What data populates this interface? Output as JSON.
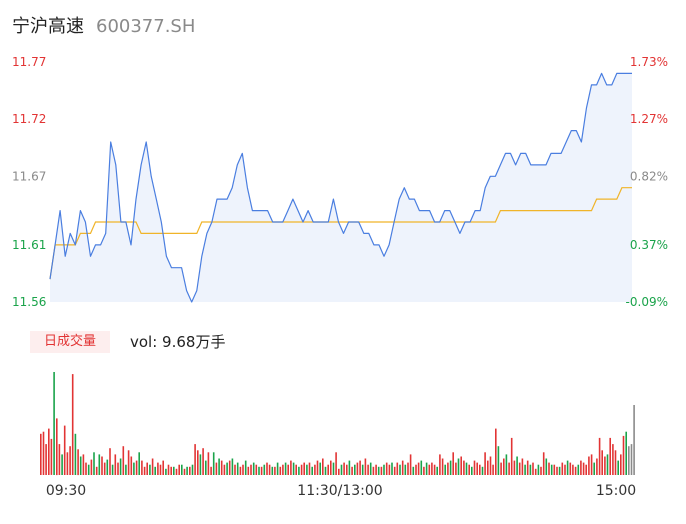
{
  "header": {
    "name": "宁沪高速",
    "code": "600377.SH"
  },
  "volume_panel": {
    "badge": "日成交量",
    "summary": "vol: 9.68万手"
  },
  "colors": {
    "up": "#e23434",
    "down": "#1aa34a",
    "flat": "#8a8a8a",
    "price_line": "#4a7ee0",
    "avg_line": "#f0b429",
    "area_fill": "#eef3fc"
  },
  "chart_data": [
    {
      "type": "line",
      "y_ticks_left": [
        {
          "value": 11.77,
          "label": "11.77",
          "tone": "up"
        },
        {
          "value": 11.72,
          "label": "11.72",
          "tone": "up"
        },
        {
          "value": 11.67,
          "label": "11.67",
          "tone": "flat"
        },
        {
          "value": 11.61,
          "label": "11.61",
          "tone": "down"
        },
        {
          "value": 11.56,
          "label": "11.56",
          "tone": "down"
        }
      ],
      "y_ticks_right": [
        {
          "label": "1.73%",
          "tone": "up"
        },
        {
          "label": "1.27%",
          "tone": "up"
        },
        {
          "label": "0.82%",
          "tone": "flat"
        },
        {
          "label": "0.37%",
          "tone": "down"
        },
        {
          "label": "-0.09%",
          "tone": "down"
        }
      ],
      "ylim": [
        11.56,
        11.77
      ],
      "x_ticks": [
        "09:30",
        "11:30/13:00",
        "15:00"
      ],
      "series": [
        {
          "values": [
            11.58,
            11.61,
            11.64,
            11.6,
            11.62,
            11.61,
            11.64,
            11.63,
            11.6,
            11.61,
            11.61,
            11.62,
            11.7,
            11.68,
            11.63,
            11.63,
            11.61,
            11.65,
            11.68,
            11.7,
            11.67,
            11.65,
            11.63,
            11.6,
            11.59,
            11.59,
            11.59,
            11.57,
            11.56,
            11.57,
            11.6,
            11.62,
            11.63,
            11.65,
            11.65,
            11.65,
            11.66,
            11.68,
            11.69,
            11.66,
            11.64,
            11.64,
            11.64,
            11.64,
            11.63,
            11.63,
            11.63,
            11.64,
            11.65,
            11.64,
            11.63,
            11.64,
            11.63,
            11.63,
            11.63,
            11.63,
            11.65,
            11.63,
            11.62,
            11.63,
            11.63,
            11.63,
            11.62,
            11.62,
            11.61,
            11.61,
            11.6,
            11.61,
            11.63,
            11.65,
            11.66,
            11.65,
            11.65,
            11.64,
            11.64,
            11.64,
            11.63,
            11.63,
            11.64,
            11.64,
            11.63,
            11.62,
            11.63,
            11.63,
            11.64,
            11.64,
            11.66,
            11.67,
            11.67,
            11.68,
            11.69,
            11.69,
            11.68,
            11.69,
            11.69,
            11.68,
            11.68,
            11.68,
            11.68,
            11.69,
            11.69,
            11.69,
            11.7,
            11.71,
            11.71,
            11.7,
            11.73,
            11.75,
            11.75,
            11.76,
            11.75,
            11.75,
            11.76,
            11.76,
            11.76,
            11.76
          ]
        }
      ],
      "avg_line": [
        11.58,
        11.61,
        11.61,
        11.61,
        11.61,
        11.61,
        11.62,
        11.62,
        11.62,
        11.63,
        11.63,
        11.63,
        11.63,
        11.63,
        11.63,
        11.63,
        11.63,
        11.63,
        11.62,
        11.62,
        11.62,
        11.62,
        11.62,
        11.62,
        11.62,
        11.62,
        11.62,
        11.62,
        11.62,
        11.62,
        11.63,
        11.63,
        11.63,
        11.63,
        11.63,
        11.63,
        11.63,
        11.63,
        11.63,
        11.63,
        11.63,
        11.63,
        11.63,
        11.63,
        11.63,
        11.63,
        11.63,
        11.63,
        11.63,
        11.63,
        11.63,
        11.63,
        11.63,
        11.63,
        11.63,
        11.63,
        11.63,
        11.63,
        11.63,
        11.63,
        11.63,
        11.63,
        11.63,
        11.63,
        11.63,
        11.63,
        11.63,
        11.63,
        11.63,
        11.63,
        11.63,
        11.63,
        11.63,
        11.63,
        11.63,
        11.63,
        11.63,
        11.63,
        11.63,
        11.63,
        11.63,
        11.63,
        11.63,
        11.63,
        11.63,
        11.63,
        11.63,
        11.63,
        11.63,
        11.64,
        11.64,
        11.64,
        11.64,
        11.64,
        11.64,
        11.64,
        11.64,
        11.64,
        11.64,
        11.64,
        11.64,
        11.64,
        11.64,
        11.64,
        11.64,
        11.64,
        11.64,
        11.64,
        11.65,
        11.65,
        11.65,
        11.65,
        11.65,
        11.66,
        11.66,
        11.66
      ]
    },
    {
      "type": "bar",
      "ylim": [
        0,
        100
      ],
      "values": [
        40,
        42,
        30,
        45,
        35,
        100,
        55,
        30,
        20,
        48,
        22,
        28,
        98,
        40,
        25,
        18,
        20,
        12,
        10,
        15,
        22,
        8,
        20,
        18,
        12,
        15,
        26,
        10,
        20,
        12,
        16,
        28,
        10,
        24,
        18,
        12,
        14,
        22,
        14,
        8,
        12,
        10,
        16,
        8,
        12,
        10,
        14,
        6,
        10,
        8,
        8,
        6,
        10,
        10,
        6,
        8,
        8,
        10,
        30,
        24,
        20,
        26,
        14,
        22,
        8,
        22,
        12,
        16,
        14,
        10,
        12,
        14,
        16,
        10,
        12,
        8,
        10,
        14,
        8,
        10,
        12,
        10,
        8,
        8,
        10,
        12,
        10,
        8,
        8,
        12,
        8,
        10,
        12,
        10,
        14,
        12,
        10,
        8,
        10,
        12,
        10,
        12,
        8,
        10,
        14,
        12,
        16,
        8,
        10,
        14,
        12,
        22,
        6,
        10,
        12,
        10,
        14,
        8,
        10,
        12,
        14,
        10,
        16,
        10,
        12,
        8,
        10,
        8,
        8,
        10,
        12,
        10,
        12,
        8,
        12,
        10,
        14,
        10,
        12,
        20,
        8,
        10,
        12,
        14,
        8,
        12,
        10,
        12,
        10,
        8,
        20,
        16,
        10,
        12,
        14,
        22,
        12,
        16,
        18,
        14,
        12,
        10,
        8,
        14,
        12,
        10,
        8,
        22,
        14,
        18,
        10,
        45,
        28,
        12,
        16,
        20,
        12,
        36,
        14,
        18,
        12,
        16,
        10,
        14,
        10,
        12,
        6,
        10,
        8,
        22,
        16,
        12,
        10,
        10,
        8,
        8,
        12,
        10,
        14,
        12,
        10,
        8,
        10,
        14,
        12,
        10,
        18,
        20,
        12,
        16,
        36,
        24,
        18,
        20,
        36,
        30,
        24,
        14,
        20,
        38,
        42,
        28,
        30,
        68
      ],
      "colors": [
        "up",
        "up",
        "up",
        "up",
        "up",
        "down",
        "up",
        "up",
        "down",
        "up",
        "up",
        "up",
        "up",
        "down",
        "up",
        "down",
        "up",
        "up",
        "down",
        "up",
        "down",
        "up",
        "down",
        "up",
        "up",
        "down",
        "up",
        "down",
        "up",
        "up",
        "down",
        "up",
        "down",
        "up",
        "up",
        "down",
        "up",
        "down",
        "up",
        "up",
        "up",
        "down",
        "up",
        "down",
        "up",
        "up",
        "up",
        "down",
        "up",
        "up",
        "down",
        "up",
        "up",
        "down",
        "up",
        "down",
        "up",
        "down",
        "up",
        "up",
        "down",
        "up",
        "down",
        "up",
        "up",
        "down",
        "up",
        "down",
        "up",
        "up",
        "down",
        "up",
        "down",
        "up",
        "down",
        "up",
        "up",
        "down",
        "up",
        "up",
        "down",
        "up",
        "down",
        "up",
        "down",
        "up",
        "up",
        "down",
        "up",
        "down",
        "up",
        "up",
        "down",
        "up",
        "up",
        "down",
        "up",
        "down",
        "up",
        "up",
        "down",
        "up",
        "down",
        "up",
        "up",
        "down",
        "up",
        "down",
        "up",
        "up",
        "down",
        "up",
        "up",
        "down",
        "up",
        "up",
        "down",
        "up",
        "down",
        "up",
        "up",
        "down",
        "up",
        "up",
        "down",
        "up",
        "up",
        "down",
        "up",
        "down",
        "up",
        "up",
        "down",
        "up",
        "up",
        "down",
        "up",
        "down",
        "up",
        "up",
        "down",
        "up",
        "up",
        "down",
        "up",
        "down",
        "up",
        "up",
        "up",
        "down",
        "up",
        "up",
        "down",
        "up",
        "down",
        "up",
        "up",
        "down",
        "up",
        "up",
        "down",
        "up",
        "down",
        "up",
        "up",
        "up",
        "down",
        "up",
        "up",
        "up",
        "up",
        "up",
        "down",
        "up",
        "up",
        "down",
        "up",
        "up",
        "up",
        "down",
        "up",
        "up",
        "down",
        "up",
        "down",
        "up",
        "up",
        "down",
        "up",
        "up",
        "down",
        "up",
        "down",
        "up",
        "up",
        "down",
        "up",
        "up",
        "down",
        "up",
        "up",
        "up",
        "down",
        "up",
        "up",
        "up",
        "up",
        "up",
        "down",
        "up",
        "up",
        "up",
        "up",
        "down",
        "up",
        "up",
        "up",
        "down",
        "up",
        "up",
        "down"
      ]
    }
  ]
}
